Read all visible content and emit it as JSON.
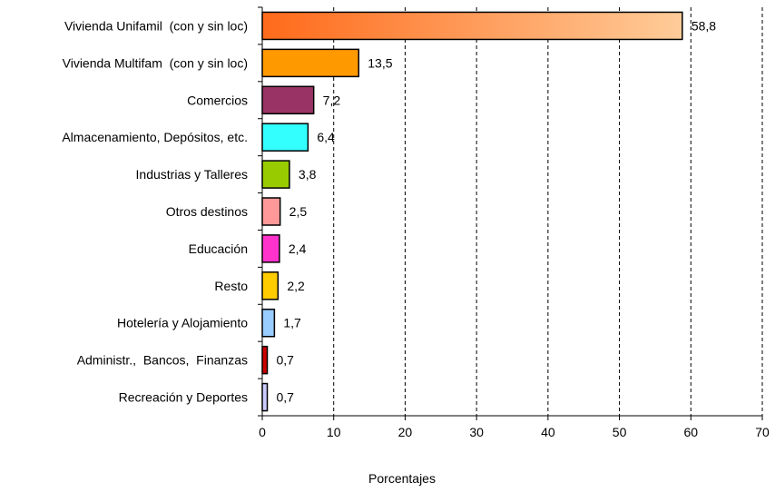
{
  "chart_data": {
    "type": "bar",
    "orientation": "horizontal",
    "categories": [
      "Vivienda Unifamil  (con y sin loc)",
      "Vivienda Multifam  (con y sin loc)",
      "Comercios",
      "Almacenamiento, Depósitos, etc.",
      "Industrias y Talleres",
      "Otros destinos",
      "Educación",
      "Resto",
      "Hotelería y Alojamiento",
      "Administr.,  Bancos,  Finanzas",
      "Recreación y Deportes"
    ],
    "values": [
      58.8,
      13.5,
      7.2,
      6.4,
      3.8,
      2.5,
      2.4,
      2.2,
      1.7,
      0.7,
      0.7
    ],
    "value_labels": [
      "58,8",
      "13,5",
      "7,2",
      "6,4",
      "3,8",
      "2,5",
      "2,4",
      "2,2",
      "1,7",
      "0,7",
      "0,7"
    ],
    "colors": [
      "#ff6a1a",
      "#ff9900",
      "#993366",
      "#33ffff",
      "#99cc00",
      "#ff9999",
      "#ff33cc",
      "#ffcc00",
      "#99ccff",
      "#cc0000",
      "#ccccff"
    ],
    "gradient_first": {
      "from": "#ff6a1a",
      "to": "#ffcc99"
    },
    "xlim": [
      0,
      70
    ],
    "xticks": [
      0,
      10,
      20,
      30,
      40,
      50,
      60,
      70
    ],
    "xlabel": "Porcentajes",
    "ylabel": "",
    "title": "",
    "grid": "vertical dashed"
  }
}
